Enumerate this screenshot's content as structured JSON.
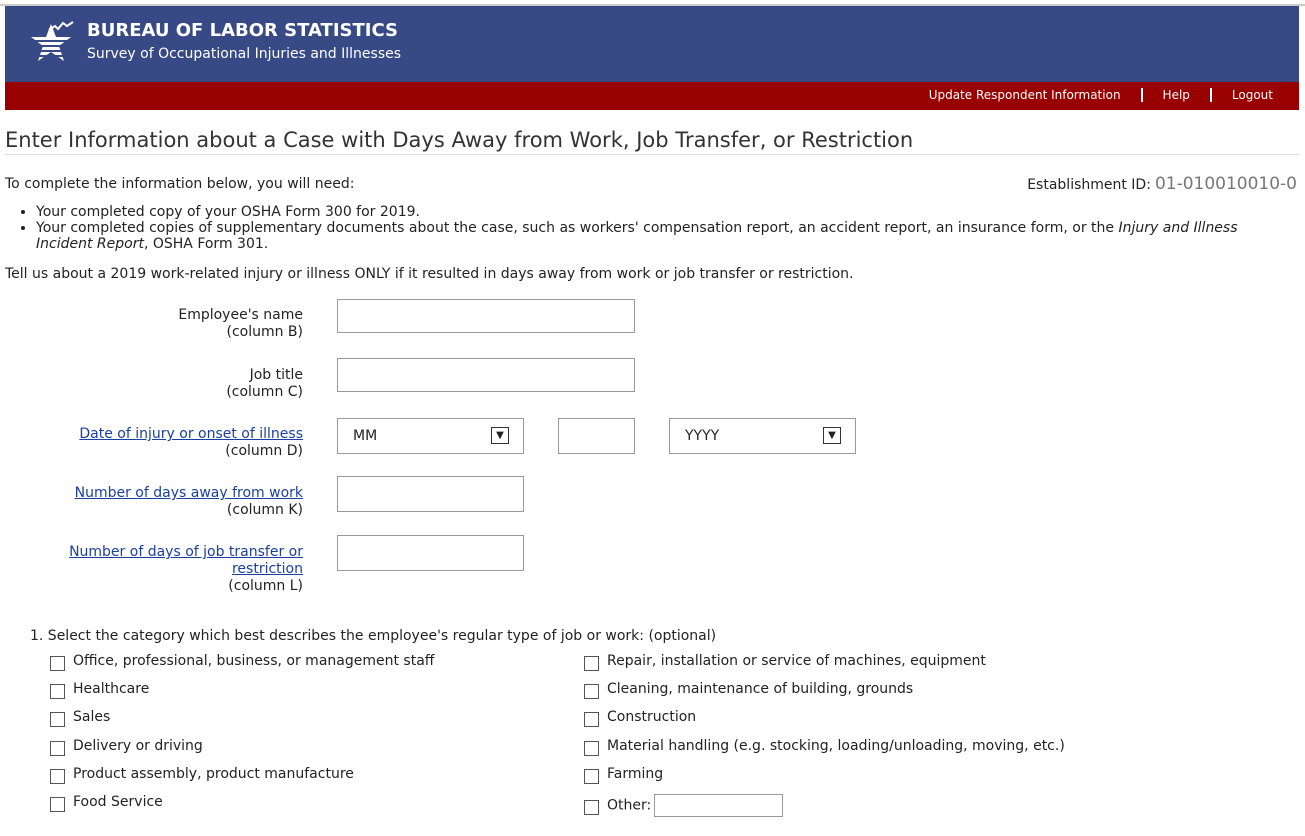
{
  "header": {
    "title": "BUREAU OF LABOR STATISTICS",
    "subtitle": "Survey of Occupational Injuries and Illnesses",
    "colors": {
      "banner": "#374a86",
      "nav_bar": "#990000"
    }
  },
  "nav": [
    "Update Respondent Information",
    "Help",
    "Logout"
  ],
  "page_title": "Enter Information about a Case with Days Away from Work, Job Transfer, or Restriction",
  "intro": "To complete the information below, you will need:",
  "establishment": {
    "label": "Establishment ID:",
    "value": "01-010010010-0"
  },
  "bullets": {
    "b1": "Your completed copy of your OSHA Form 300 for 2019.",
    "b2_pre": "Your completed copies of supplementary documents about the case, such as workers' compensation report, an accident report, an insurance form, or the ",
    "b2_em": "Injury and Illness Incident Report",
    "b2_post": ", OSHA Form 301."
  },
  "note": "Tell us about a 2019 work-related injury or illness ONLY if it resulted in days away from work or job transfer or restriction.",
  "fields": [
    {
      "label": "Employee's name",
      "sub": "(column B)",
      "value": ""
    },
    {
      "label": "Job title",
      "sub": "(column C)",
      "value": ""
    },
    {
      "label": "Date of injury or onset of illness",
      "sub": "(column D)",
      "month": "MM",
      "day": "",
      "year": "YYYY"
    },
    {
      "label": "Number of days away from work",
      "sub": "(column K)",
      "value": ""
    },
    {
      "label": "Number of days of job transfer or restriction",
      "sub": "(column L)",
      "value": ""
    }
  ],
  "question": "1.  Select the category which best describes the employee's regular type of job or work: (optional)",
  "left_options": [
    "Office, professional, business, or management staff",
    "Healthcare",
    "Sales",
    "Delivery or driving",
    "Product assembly, product manufacture",
    "Food Service"
  ],
  "right_options": [
    "Repair, installation or service of machines, equipment",
    "Cleaning, maintenance of building, grounds",
    "Construction",
    "Material handling (e.g. stocking, loading/unloading, moving, etc.)",
    "Farming",
    "Other:"
  ]
}
